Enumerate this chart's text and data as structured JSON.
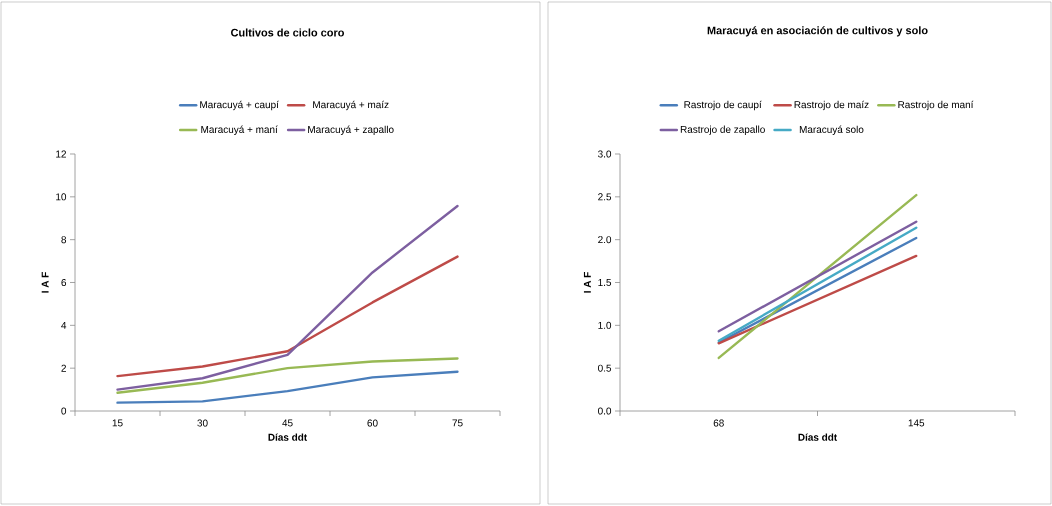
{
  "chart_data": [
    {
      "type": "line",
      "title": "Cultivos de ciclo coro",
      "xlabel": "Días ddt",
      "ylabel": "I A F",
      "categories": [
        "15",
        "30",
        "45",
        "60",
        "75"
      ],
      "series": [
        {
          "name": "Maracuyá + caupí",
          "color": "#4a7ebb",
          "values": [
            0.39,
            0.45,
            0.93,
            1.57,
            1.83
          ]
        },
        {
          "name": "Maracuyá + maíz",
          "color": "#be4b48",
          "values": [
            1.63,
            2.08,
            2.79,
            5.07,
            7.21
          ]
        },
        {
          "name": "Maracuyá + maní",
          "color": "#98b954",
          "values": [
            0.85,
            1.32,
            2.0,
            2.31,
            2.45
          ]
        },
        {
          "name": "Maracuyá + zapallo",
          "color": "#7d5fa0",
          "values": [
            1.0,
            1.53,
            2.62,
            6.47,
            9.57
          ]
        }
      ],
      "ylim": [
        0,
        12
      ],
      "yticks": [
        0,
        2,
        4,
        6,
        8,
        10,
        12
      ],
      "legend": "top"
    },
    {
      "type": "line",
      "title": "Maracuyá en asociación de cultivos y solo",
      "xlabel": "Días ddt",
      "ylabel": "I A F",
      "categories": [
        "68",
        "145"
      ],
      "series": [
        {
          "name": "Rastrojo de caupí",
          "color": "#4a7ebb",
          "values": [
            0.8,
            2.02
          ]
        },
        {
          "name": "Rastrojo de maíz",
          "color": "#be4b48",
          "values": [
            0.79,
            1.81
          ]
        },
        {
          "name": "Rastrojo de maní",
          "color": "#98b954",
          "values": [
            0.62,
            2.52
          ]
        },
        {
          "name": "Rastrojo de zapallo",
          "color": "#7d5fa0",
          "values": [
            0.93,
            2.21
          ]
        },
        {
          "name": "Maracuyá solo",
          "color": "#46aac5",
          "values": [
            0.82,
            2.14
          ]
        }
      ],
      "ylim": [
        0,
        3.0
      ],
      "yticks": [
        {
          "value": 0,
          "label": "0.0"
        },
        {
          "value": 0.5,
          "label": "0.5"
        },
        {
          "value": 1.0,
          "label": "1.0"
        },
        {
          "value": 1.5,
          "label": "1.5"
        },
        {
          "value": 2.0,
          "label": "2.0"
        },
        {
          "value": 2.5,
          "label": "2.5"
        },
        {
          "value": 3.0,
          "label": "3.0"
        }
      ],
      "legend": "top"
    }
  ]
}
